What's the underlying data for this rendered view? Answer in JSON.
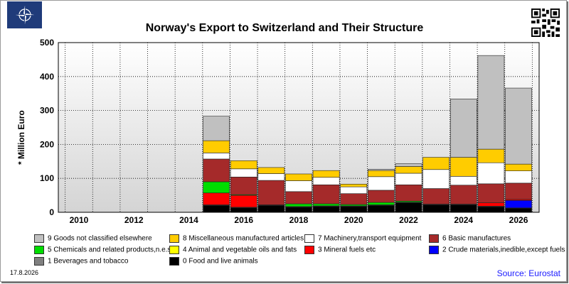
{
  "page": {
    "title": "Norway's Export to Switzerland and Their Structure",
    "date": "17.8.2026",
    "source": "Source: Eurostat"
  },
  "chart_data": {
    "type": "bar",
    "stacked": true,
    "title": "Norway's Export to Switzerland and Their Structure",
    "xlabel": "",
    "ylabel": "* Million Euro",
    "ylim": [
      0,
      500
    ],
    "yticks": [
      0,
      100,
      200,
      300,
      400,
      500
    ],
    "xtick_labels": [
      "2010",
      "2012",
      "2014",
      "2016",
      "2018",
      "2020",
      "2022",
      "2024",
      "2026"
    ],
    "grid": true,
    "legend_position": "bottom",
    "categories": [
      "2010",
      "2011",
      "2012",
      "2013",
      "2014",
      "2015",
      "2016",
      "2017",
      "2018",
      "2019",
      "2020",
      "2021",
      "2022",
      "2023",
      "2024",
      "2025",
      "2026"
    ],
    "series": [
      {
        "name": "0 Food and live animals",
        "color": "#000000",
        "values": [
          0,
          0,
          0,
          0,
          0,
          20,
          13,
          20,
          15,
          17,
          17,
          20,
          28,
          22,
          22,
          16,
          12
        ]
      },
      {
        "name": "1 Beverages and tobacco",
        "color": "#808080",
        "values": [
          0,
          0,
          0,
          0,
          0,
          1,
          1,
          1,
          1,
          1,
          1,
          1,
          1,
          1,
          1,
          1,
          1
        ]
      },
      {
        "name": "2 Crude materials,inedible,except fuels",
        "color": "#0000ff",
        "values": [
          0,
          0,
          0,
          0,
          0,
          1,
          1,
          1,
          1,
          1,
          1,
          1,
          1,
          1,
          1,
          1,
          22
        ]
      },
      {
        "name": "3 Mineral fuels etc",
        "color": "#ff0000",
        "values": [
          0,
          0,
          0,
          0,
          0,
          35,
          35,
          0,
          0,
          0,
          0,
          0,
          0,
          0,
          0,
          10,
          3
        ]
      },
      {
        "name": "4 Animal and vegetable oils and fats",
        "color": "#ffff00",
        "values": [
          0,
          0,
          0,
          0,
          0,
          0,
          0,
          0,
          0,
          0,
          0,
          0,
          0,
          0,
          0,
          0,
          0
        ]
      },
      {
        "name": "5 Chemicals and related products,n.e.s.",
        "color": "#00dd00",
        "values": [
          0,
          0,
          0,
          0,
          0,
          33,
          2,
          0,
          8,
          6,
          4,
          7,
          3,
          0,
          0,
          0,
          0
        ]
      },
      {
        "name": "6 Basic manufactures",
        "color": "#a52a2a",
        "values": [
          0,
          0,
          0,
          0,
          0,
          67,
          52,
          72,
          36,
          56,
          32,
          36,
          48,
          46,
          56,
          56,
          48
        ]
      },
      {
        "name": "7 Machinery,transport equipment",
        "color": "#ffffff",
        "values": [
          0,
          0,
          0,
          0,
          0,
          18,
          24,
          20,
          32,
          22,
          20,
          40,
          34,
          56,
          26,
          62,
          36
        ]
      },
      {
        "name": "8 Miscellaneous manufactured articles",
        "color": "#ffcc00",
        "values": [
          0,
          0,
          0,
          0,
          0,
          36,
          24,
          18,
          20,
          20,
          8,
          18,
          20,
          36,
          56,
          40,
          20
        ]
      },
      {
        "name": "9 Goods not classified elsewhere",
        "color": "#c0c0c0",
        "values": [
          0,
          0,
          0,
          0,
          0,
          72,
          0,
          0,
          0,
          0,
          0,
          4,
          8,
          0,
          172,
          276,
          224
        ]
      }
    ]
  },
  "legend": [
    {
      "label": "9 Goods not classified elsewhere",
      "color": "#c0c0c0"
    },
    {
      "label": "8 Miscellaneous manufactured articles",
      "color": "#ffcc00"
    },
    {
      "label": "7 Machinery,transport equipment",
      "color": "#ffffff"
    },
    {
      "label": "6 Basic manufactures",
      "color": "#a52a2a"
    },
    {
      "label": "5 Chemicals and related products,n.e.s.",
      "color": "#00dd00"
    },
    {
      "label": "4 Animal and vegetable oils and fats",
      "color": "#ffff00"
    },
    {
      "label": "3 Mineral fuels etc",
      "color": "#ff0000"
    },
    {
      "label": "2 Crude materials,inedible,except fuels",
      "color": "#0000ff"
    },
    {
      "label": "1 Beverages and tobacco",
      "color": "#808080"
    },
    {
      "label": "0 Food and live animals",
      "color": "#000000"
    }
  ],
  "icons": {
    "logo": "nato-star-logo",
    "qr": "qr-code-icon"
  }
}
